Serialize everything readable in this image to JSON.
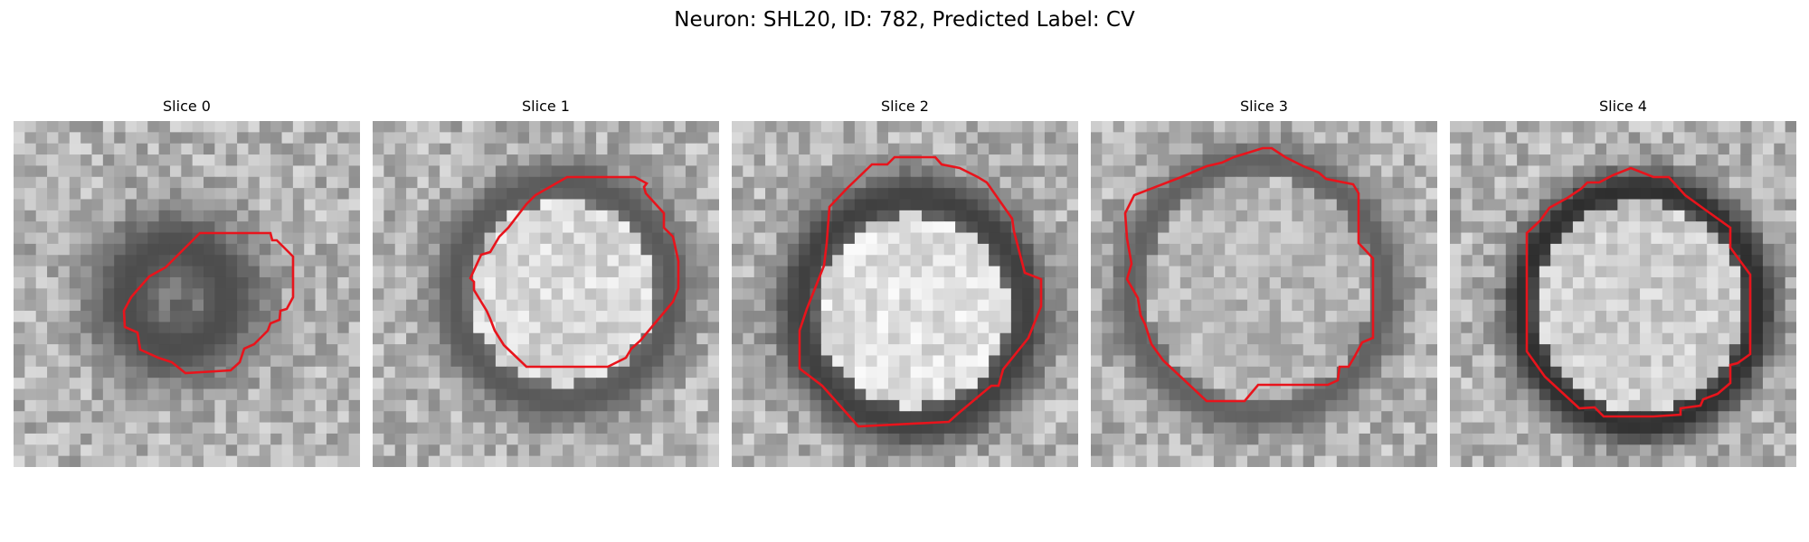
{
  "figure": {
    "title": "Neuron: SHL20, ID: 782, Predicted Label: CV"
  },
  "colors": {
    "contour": "#e8141c",
    "background": "#ffffff"
  },
  "panels": [
    {
      "label": "Slice 0"
    },
    {
      "label": "Slice 1"
    },
    {
      "label": "Slice 2"
    },
    {
      "label": "Slice 3"
    },
    {
      "label": "Slice 4"
    }
  ]
}
